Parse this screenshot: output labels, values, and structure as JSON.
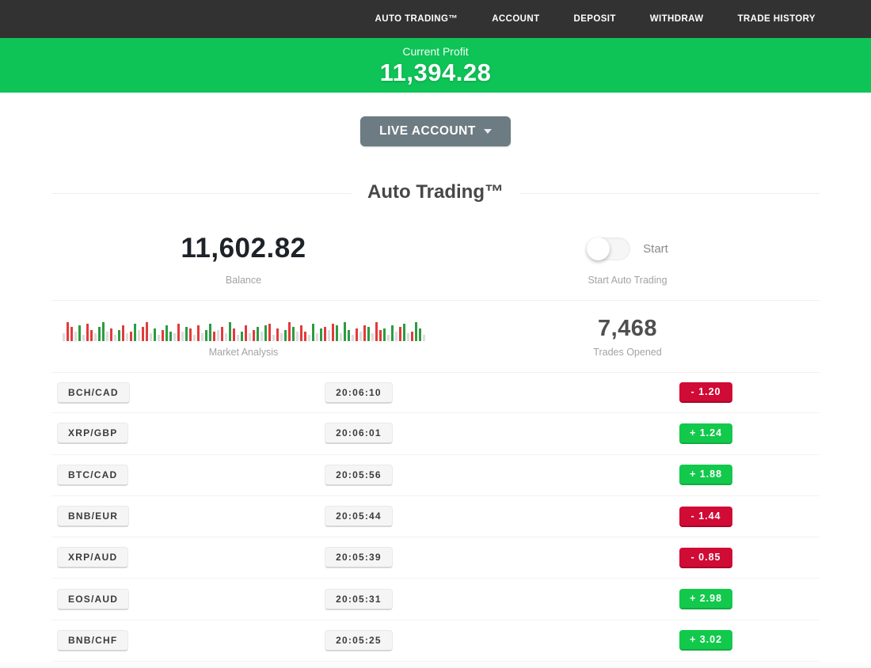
{
  "nav": {
    "items": [
      "AUTO TRADING™",
      "ACCOUNT",
      "DEPOSIT",
      "WITHDRAW",
      "TRADE HISTORY"
    ]
  },
  "banner": {
    "label": "Current Profit",
    "value": "11,394.28"
  },
  "account_selector": {
    "label": "LIVE ACCOUNT"
  },
  "section": {
    "title": "Auto Trading™"
  },
  "stats": {
    "balance": {
      "value": "11,602.82",
      "label": "Balance"
    },
    "auto_trading": {
      "toggle_label": "Start",
      "toggle_state": "off",
      "label": "Start Auto Trading"
    },
    "market": {
      "label": "Market Analysis"
    },
    "trades_opened": {
      "value": "7,468",
      "label": "Trades Opened"
    }
  },
  "chart_data": {
    "type": "bar",
    "title": "Market Analysis",
    "note": "decorative mini bar strip; c=r red, g green, x gray; h in px (est.)",
    "bars": [
      "x10",
      "r24",
      "r18",
      "x12",
      "g20",
      "x8",
      "r22",
      "r14",
      "x10",
      "g18",
      "g24",
      "x12",
      "r16",
      "x8",
      "g14",
      "r20",
      "x10",
      "r12",
      "g22",
      "x14",
      "r18",
      "r24",
      "x10",
      "g16",
      "x8",
      "r14",
      "g20",
      "g12",
      "x10",
      "r22",
      "x12",
      "g18",
      "r16",
      "x8",
      "r20",
      "x10",
      "g14",
      "g22",
      "r12",
      "x14",
      "r18",
      "x10",
      "g24",
      "r16",
      "x8",
      "g12",
      "r20",
      "x10",
      "r14",
      "g18",
      "x12",
      "g20",
      "r22",
      "x8",
      "r16",
      "x10",
      "g14",
      "r24",
      "g18",
      "x12",
      "r20",
      "r12",
      "x8",
      "g22",
      "x10",
      "g16",
      "r18",
      "x14",
      "r22",
      "g20",
      "x10",
      "g24",
      "g14",
      "x8",
      "r16",
      "x12",
      "r20",
      "g18",
      "x10",
      "r24",
      "r14",
      "g16",
      "x8",
      "g20",
      "x12",
      "r18",
      "g22",
      "x10",
      "r12",
      "g24",
      "g16",
      "x8"
    ]
  },
  "trades": {
    "rows": [
      {
        "pair": "BCH/CAD",
        "time": "20:06:10",
        "result": "-  1.20",
        "direction": "neg"
      },
      {
        "pair": "XRP/GBP",
        "time": "20:06:01",
        "result": "+  1.24",
        "direction": "pos"
      },
      {
        "pair": "BTC/CAD",
        "time": "20:05:56",
        "result": "+  1.88",
        "direction": "pos"
      },
      {
        "pair": "BNB/EUR",
        "time": "20:05:44",
        "result": "-  1.44",
        "direction": "neg"
      },
      {
        "pair": "XRP/AUD",
        "time": "20:05:39",
        "result": "-  0.85",
        "direction": "neg"
      },
      {
        "pair": "EOS/AUD",
        "time": "20:05:31",
        "result": "+  2.98",
        "direction": "pos"
      },
      {
        "pair": "BNB/CHF",
        "time": "20:05:25",
        "result": "+  3.02",
        "direction": "pos"
      }
    ]
  },
  "colors": {
    "nav_bg": "#323232",
    "banner_green": "#0ec457",
    "result_green": "#12c94c",
    "result_red": "#d00b35",
    "bar_red": "#e23b3b",
    "bar_green": "#2e9b41",
    "bar_gray": "#dcdcdc",
    "button_gray": "#6d7b82"
  }
}
